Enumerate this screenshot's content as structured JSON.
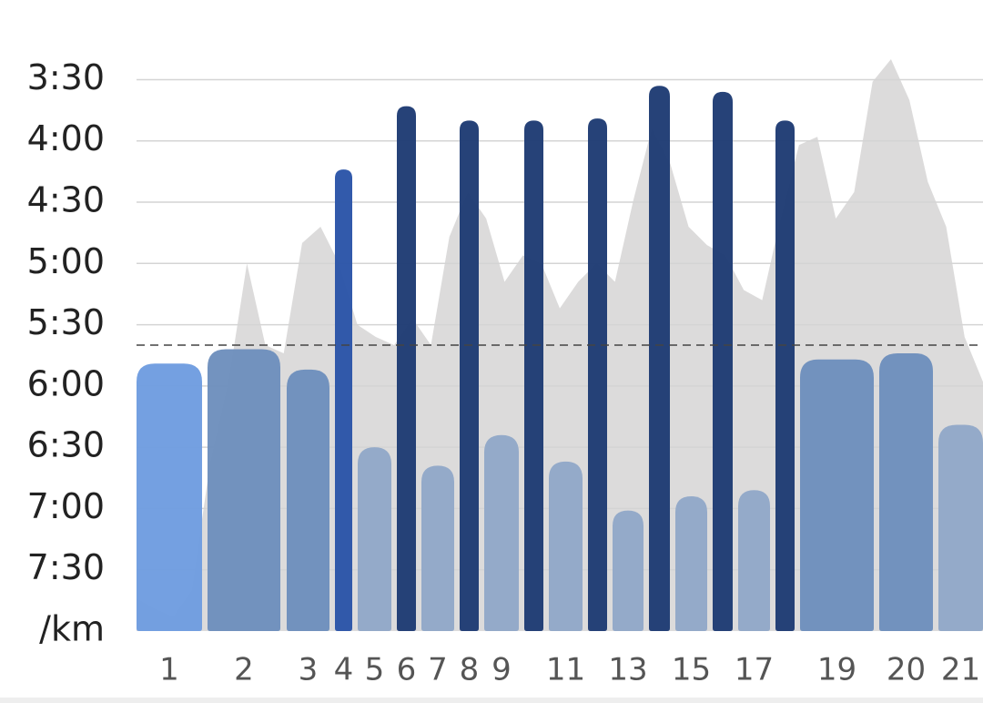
{
  "chart_data": {
    "type": "bar",
    "categories": [
      "1",
      "2",
      "3",
      "4",
      "5",
      "6",
      "7",
      "8",
      "9",
      null,
      "11",
      null,
      "13",
      null,
      "15",
      null,
      "17",
      null,
      "19",
      "20",
      "21"
    ],
    "values": [
      349,
      342,
      352,
      254,
      390,
      223,
      399,
      230,
      384,
      230,
      397,
      229,
      421,
      213,
      414,
      216,
      411,
      230,
      347,
      344,
      379
    ],
    "colors": [
      "#6f9de0",
      "#6e8fbd",
      "#6e8fbd",
      "#2b55a8",
      "#92a8c8",
      "#1f3c74",
      "#92a8c8",
      "#1f3c74",
      "#92a8c8",
      "#1f3c74",
      "#92a8c8",
      "#1f3c74",
      "#92a8c8",
      "#1f3c74",
      "#92a8c8",
      "#1f3c74",
      "#92a8c8",
      "#1f3c74",
      "#6e8fbd",
      "#6e8fbd",
      "#92a8c8"
    ],
    "area": {
      "color": "#dcdbdb",
      "values": [
        464,
        469,
        473,
        460,
        398,
        358,
        300,
        340,
        344,
        290,
        282,
        300,
        330,
        336,
        340,
        327,
        340,
        287,
        265,
        278,
        309,
        296,
        300,
        322,
        309,
        300,
        309,
        269,
        234,
        251,
        282,
        291,
        296,
        313,
        318,
        278,
        242,
        238,
        278,
        265,
        211,
        200,
        220,
        260,
        282,
        336,
        358
      ]
    },
    "average": 340,
    "ylim": [
      480,
      171
    ],
    "yticks": [
      {
        "value": 210,
        "label": "3:30"
      },
      {
        "value": 240,
        "label": "4:00"
      },
      {
        "value": 270,
        "label": "4:30"
      },
      {
        "value": 300,
        "label": "5:00"
      },
      {
        "value": 330,
        "label": "5:30"
      },
      {
        "value": 360,
        "label": "6:00"
      },
      {
        "value": 390,
        "label": "6:30"
      },
      {
        "value": 420,
        "label": "7:00"
      },
      {
        "value": 450,
        "label": "7:30"
      },
      {
        "value": 480,
        "label": "/km"
      }
    ],
    "grid": true
  }
}
